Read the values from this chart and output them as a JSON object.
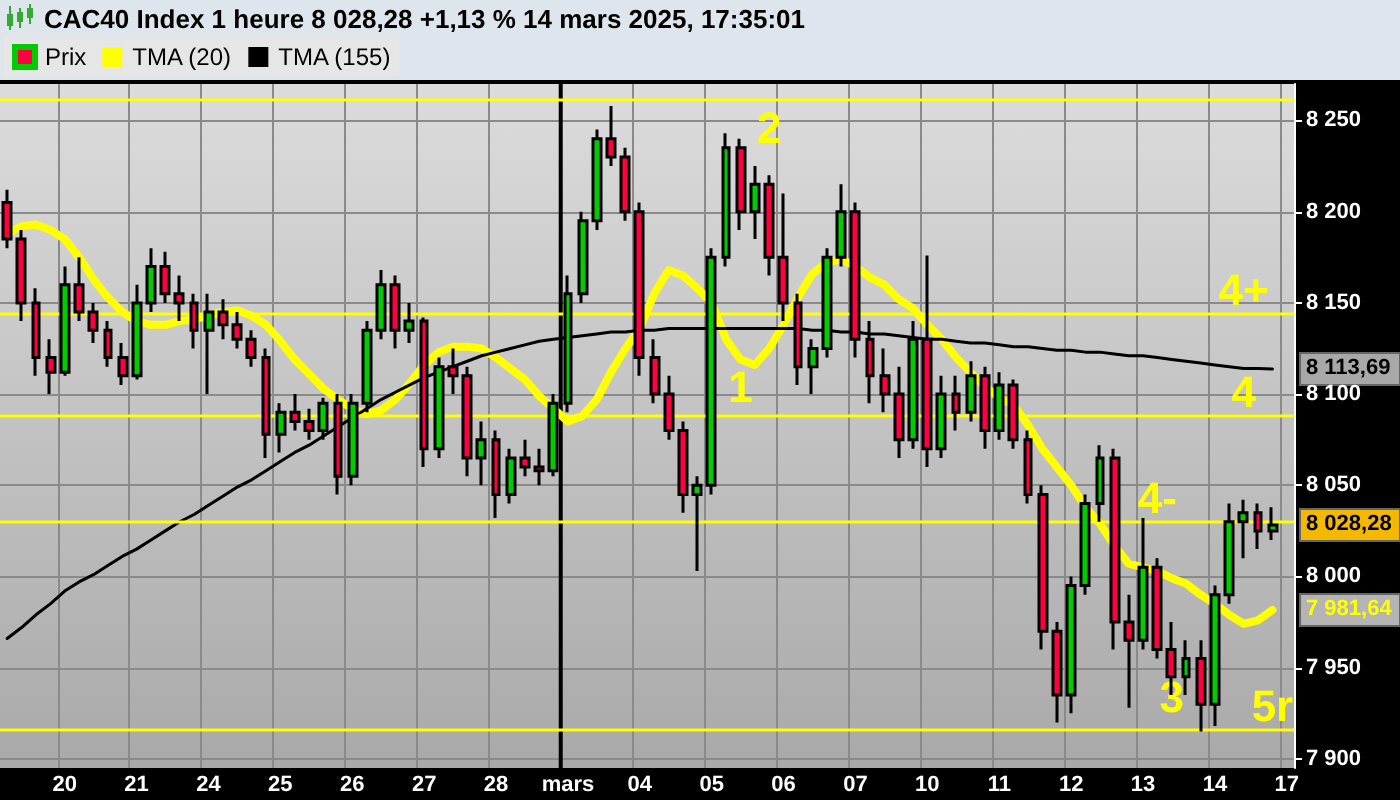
{
  "chart_data": {
    "type": "candlestick",
    "title": "CAC40 Index 1 heure 8 028,28 +1,13 % 14 mars 2025, 17:35:01",
    "categories": [
      null,
      null,
      null,
      null,
      "20",
      null,
      null,
      null,
      null,
      "21",
      null,
      null,
      null,
      null,
      "24",
      null,
      null,
      null,
      null,
      "25",
      null,
      null,
      null,
      null,
      "26",
      null,
      null,
      null,
      null,
      "27",
      null,
      null,
      null,
      null,
      "28",
      null,
      null,
      null,
      null,
      "mars",
      null,
      null,
      null,
      null,
      "04",
      null,
      null,
      null,
      null,
      "05",
      null,
      null,
      null,
      null,
      "06",
      null,
      null,
      null,
      null,
      "07",
      null,
      null,
      null,
      null,
      "10",
      null,
      null,
      null,
      null,
      "11",
      null,
      null,
      null,
      null,
      "12",
      null,
      null,
      null,
      null,
      "13",
      null,
      null,
      null,
      null,
      "14",
      null,
      null,
      null,
      null,
      "17"
    ],
    "series": [
      {
        "name": "Prix",
        "ohlc": [
          [
            8205,
            8212,
            8180,
            8185
          ],
          [
            8185,
            8190,
            8140,
            8150
          ],
          [
            8150,
            8158,
            8110,
            8120
          ],
          [
            8120,
            8130,
            8100,
            8112
          ],
          [
            8112,
            8170,
            8110,
            8160
          ],
          [
            8160,
            8175,
            8140,
            8145
          ],
          [
            8145,
            8150,
            8128,
            8135
          ],
          [
            8135,
            8140,
            8115,
            8120
          ],
          [
            8120,
            8128,
            8105,
            8110
          ],
          [
            8110,
            8160,
            8108,
            8150
          ],
          [
            8150,
            8180,
            8145,
            8170
          ],
          [
            8170,
            8178,
            8150,
            8155
          ],
          [
            8155,
            8165,
            8140,
            8150
          ],
          [
            8150,
            8155,
            8125,
            8135
          ],
          [
            8135,
            8155,
            8100,
            8145
          ],
          [
            8145,
            8152,
            8130,
            8138
          ],
          [
            8138,
            8145,
            8125,
            8130
          ],
          [
            8130,
            8135,
            8115,
            8120
          ],
          [
            8120,
            8125,
            8065,
            8078
          ],
          [
            8078,
            8095,
            8068,
            8090
          ],
          [
            8090,
            8100,
            8080,
            8085
          ],
          [
            8085,
            8092,
            8075,
            8080
          ],
          [
            8080,
            8098,
            8075,
            8095
          ],
          [
            8095,
            8100,
            8045,
            8055
          ],
          [
            8055,
            8100,
            8050,
            8095
          ],
          [
            8095,
            8140,
            8090,
            8135
          ],
          [
            8135,
            8168,
            8130,
            8160
          ],
          [
            8160,
            8165,
            8125,
            8135
          ],
          [
            8135,
            8150,
            8128,
            8140
          ],
          [
            8140,
            8142,
            8060,
            8070
          ],
          [
            8070,
            8120,
            8065,
            8115
          ],
          [
            8115,
            8125,
            8100,
            8110
          ],
          [
            8110,
            8115,
            8055,
            8065
          ],
          [
            8065,
            8085,
            8050,
            8075
          ],
          [
            8075,
            8080,
            8032,
            8045
          ],
          [
            8045,
            8070,
            8040,
            8065
          ],
          [
            8065,
            8075,
            8055,
            8060
          ],
          [
            8060,
            8070,
            8050,
            8058
          ],
          [
            8058,
            8100,
            8055,
            8095
          ],
          [
            8095,
            8165,
            8090,
            8155
          ],
          [
            8155,
            8200,
            8150,
            8195
          ],
          [
            8195,
            8245,
            8190,
            8240
          ],
          [
            8240,
            8258,
            8225,
            8230
          ],
          [
            8230,
            8235,
            8195,
            8200
          ],
          [
            8200,
            8205,
            8110,
            8120
          ],
          [
            8120,
            8130,
            8095,
            8100
          ],
          [
            8100,
            8110,
            8075,
            8080
          ],
          [
            8080,
            8085,
            8035,
            8045
          ],
          [
            8045,
            8055,
            8003,
            8050
          ],
          [
            8050,
            8180,
            8045,
            8175
          ],
          [
            8175,
            8243,
            8170,
            8235
          ],
          [
            8235,
            8240,
            8190,
            8200
          ],
          [
            8200,
            8225,
            8185,
            8215
          ],
          [
            8215,
            8220,
            8165,
            8175
          ],
          [
            8175,
            8210,
            8140,
            8150
          ],
          [
            8150,
            8155,
            8105,
            8115
          ],
          [
            8115,
            8130,
            8100,
            8125
          ],
          [
            8125,
            8180,
            8120,
            8175
          ],
          [
            8175,
            8215,
            8170,
            8200
          ],
          [
            8200,
            8205,
            8120,
            8130
          ],
          [
            8130,
            8140,
            8095,
            8110
          ],
          [
            8110,
            8125,
            8090,
            8100
          ],
          [
            8100,
            8115,
            8065,
            8075
          ],
          [
            8075,
            8140,
            8070,
            8130
          ],
          [
            8130,
            8176,
            8060,
            8070
          ],
          [
            8070,
            8110,
            8065,
            8100
          ],
          [
            8100,
            8110,
            8080,
            8090
          ],
          [
            8090,
            8118,
            8085,
            8110
          ],
          [
            8110,
            8115,
            8070,
            8080
          ],
          [
            8080,
            8112,
            8075,
            8105
          ],
          [
            8105,
            8108,
            8070,
            8075
          ],
          [
            8075,
            8080,
            8040,
            8045
          ],
          [
            8045,
            8050,
            7960,
            7970
          ],
          [
            7970,
            7975,
            7920,
            7935
          ],
          [
            7935,
            8000,
            7925,
            7995
          ],
          [
            7995,
            8045,
            7990,
            8040
          ],
          [
            8040,
            8072,
            8030,
            8065
          ],
          [
            8065,
            8070,
            7960,
            7975
          ],
          [
            7975,
            7990,
            7928,
            7965
          ],
          [
            7965,
            8032,
            7960,
            8005
          ],
          [
            8005,
            8010,
            7955,
            7960
          ],
          [
            7960,
            7975,
            7935,
            7945
          ],
          [
            7945,
            7965,
            7935,
            7955
          ],
          [
            7955,
            7965,
            7915,
            7930
          ],
          [
            7930,
            7995,
            7918,
            7990
          ],
          [
            7990,
            8040,
            7985,
            8030
          ],
          [
            8030,
            8042,
            8010,
            8035
          ],
          [
            8035,
            8040,
            8015,
            8025
          ],
          [
            8025,
            8038,
            8020,
            8028.28
          ],
          null
        ],
        "colors": [
          "#ff0040",
          "#ff0040",
          "#ff0040",
          "#ff0040",
          "#00cc00",
          "#ff0040",
          "#ff0040",
          "#ff0040",
          "#ff0040",
          "#00cc00",
          "#00cc00",
          "#ff0040",
          "#ff0040",
          "#ff0040",
          "#00cc00",
          "#ff0040",
          "#ff0040",
          "#ff0040",
          "#ff0040",
          "#00cc00",
          "#ff0040",
          "#ff0040",
          "#00cc00",
          "#ff0040",
          "#00cc00",
          "#00cc00",
          "#00cc00",
          "#ff0040",
          "#00cc00",
          "#ff0040",
          "#00cc00",
          "#ff0040",
          "#ff0040",
          "#00cc00",
          "#ff0040",
          "#00cc00",
          "#ff0040",
          "#ff0040",
          "#00cc00",
          "#00cc00",
          "#00cc00",
          "#00cc00",
          "#ff0040",
          "#ff0040",
          "#ff0040",
          "#ff0040",
          "#ff0040",
          "#ff0040",
          "#00cc00",
          "#00cc00",
          "#00cc00",
          "#ff0040",
          "#00cc00",
          "#ff0040",
          "#ff0040",
          "#ff0040",
          "#00cc00",
          "#00cc00",
          "#00cc00",
          "#ff0040",
          "#ff0040",
          "#ff0040",
          "#ff0040",
          "#00cc00",
          "#ff0040",
          "#00cc00",
          "#ff0040",
          "#00cc00",
          "#ff0040",
          "#00cc00",
          "#ff0040",
          "#ff0040",
          "#ff0040",
          "#ff0040",
          "#00cc00",
          "#00cc00",
          "#00cc00",
          "#ff0040",
          "#ff0040",
          "#00cc00",
          "#ff0040",
          "#ff0040",
          "#00cc00",
          "#ff0040",
          "#00cc00",
          "#00cc00",
          "#00cc00",
          "#ff0040",
          "#00cc00",
          null
        ]
      },
      {
        "name": "TMA (20)",
        "type": "line",
        "color": "#ffff00",
        "values": [
          8188,
          8192,
          8193,
          8190,
          8185,
          8175,
          8163,
          8153,
          8145,
          8140,
          8138,
          8138,
          8140,
          8141,
          8143,
          8145,
          8146,
          8143,
          8138,
          8129,
          8119,
          8111,
          8103,
          8097,
          8092,
          8089,
          8091,
          8097,
          8106,
          8116,
          8123,
          8126,
          8126,
          8125,
          8120,
          8114,
          8108,
          8099,
          8092,
          8085,
          8088,
          8097,
          8112,
          8125,
          8136,
          8155,
          8168,
          8165,
          8158,
          8150,
          8130,
          8119,
          8116,
          8125,
          8138,
          8153,
          8166,
          8172,
          8174,
          8170,
          8164,
          8160,
          8152,
          8147,
          8138,
          8130,
          8120,
          8112,
          8104,
          8098,
          8094,
          8083,
          8070,
          8060,
          8050,
          8038,
          8029,
          8017,
          8007,
          8005,
          8003,
          7999,
          7996,
          7990,
          7985,
          7979,
          7974,
          7976,
          7981.64,
          null
        ]
      },
      {
        "name": "TMA (155)",
        "type": "line",
        "color": "#000000",
        "values": [
          7966,
          7972,
          7979,
          7985,
          7992,
          7997,
          8001,
          8006,
          8011,
          8015,
          8020,
          8025,
          8030,
          8034,
          8039,
          8044,
          8049,
          8053,
          8058,
          8063,
          8068,
          8072,
          8077,
          8082,
          8087,
          8092,
          8097,
          8101,
          8105,
          8109,
          8112,
          8115,
          8118,
          8121,
          8123,
          8125,
          8127,
          8129,
          8130,
          8131,
          8132,
          8133,
          8134,
          8134,
          8135,
          8135,
          8136,
          8136,
          8136,
          8136,
          8136,
          8136,
          8136,
          8136,
          8136,
          8136,
          8135,
          8135,
          8134,
          8134,
          8133,
          8133,
          8132,
          8131,
          8130,
          8130,
          8129,
          8128,
          8128,
          8127,
          8126,
          8126,
          8125,
          8124,
          8124,
          8123,
          8123,
          8122,
          8121,
          8121,
          8120,
          8119,
          8118,
          8117,
          8116,
          8115,
          8114,
          8114,
          8113.69,
          null
        ]
      }
    ],
    "ylim": [
      7895,
      8270
    ],
    "yticks": [
      {
        "value": 7900,
        "label": "7 900"
      },
      {
        "value": 7950,
        "label": "7 950"
      },
      {
        "value": 8000,
        "label": "8 000"
      },
      {
        "value": 8050,
        "label": "8 050"
      },
      {
        "value": 8100,
        "label": "8 100"
      },
      {
        "value": 8150,
        "label": "8 150"
      },
      {
        "value": 8200,
        "label": "8 200"
      },
      {
        "value": 8250,
        "label": "8 250"
      }
    ],
    "ref_lines": [
      {
        "axis": "y",
        "value": 8261,
        "label": null,
        "color": "#ffff00"
      },
      {
        "axis": "y",
        "value": 8144,
        "label": null,
        "color": "#ffff00"
      },
      {
        "axis": "y",
        "value": 8088,
        "label": null,
        "color": "#ffff00"
      },
      {
        "axis": "y",
        "value": 8030,
        "label": null,
        "color": "#ffff00"
      },
      {
        "axis": "y",
        "value": 7916,
        "label": null,
        "color": "#ffff00"
      },
      {
        "axis": "x",
        "value": "mars",
        "label": null,
        "color": "#000000"
      }
    ],
    "annotations": [
      "1",
      "2",
      "3",
      "4+",
      "4",
      "4-",
      "5r",
      "8 113,69",
      "8 028,28",
      "7 981,64"
    ],
    "grid": true,
    "legend": "top left",
    "marker": "none"
  }
}
